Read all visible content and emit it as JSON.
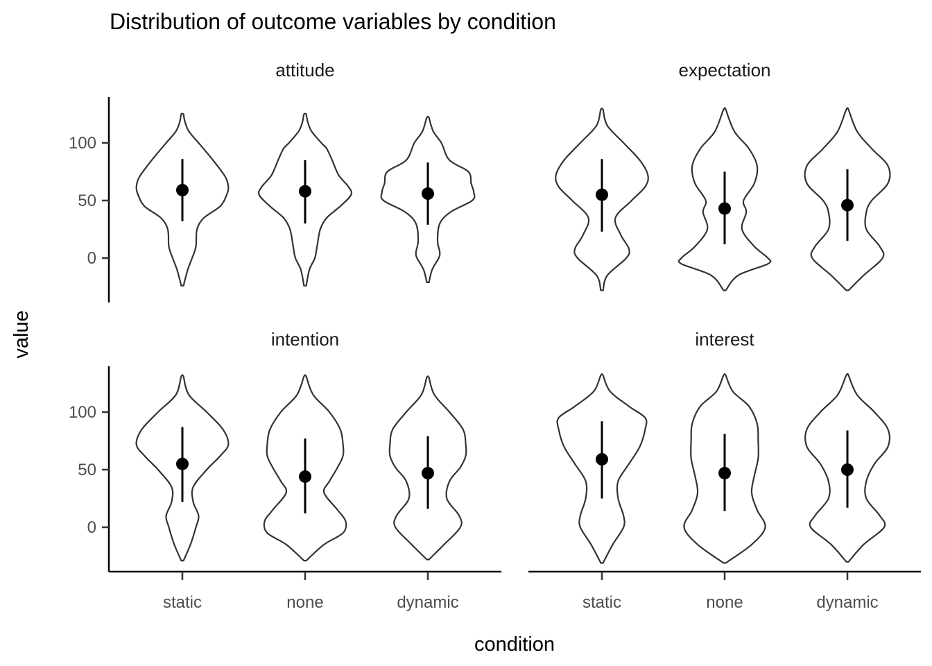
{
  "chart_data": {
    "type": "violin",
    "title": "Distribution of outcome variables by condition",
    "xlabel": "condition",
    "ylabel": "value",
    "categories": [
      "static",
      "none",
      "dynamic"
    ],
    "yticks": [
      0,
      50,
      100
    ],
    "ylim": [
      -38,
      138
    ],
    "facets": [
      {
        "name": "attitude",
        "groups": [
          {
            "condition": "static",
            "mean": 59,
            "low": 32,
            "high": 86,
            "min": -24,
            "max": 125,
            "profile": [
              [
                -24,
                0.02
              ],
              [
                -10,
                0.1
              ],
              [
                0,
                0.18
              ],
              [
                10,
                0.25
              ],
              [
                25,
                0.27
              ],
              [
                35,
                0.4
              ],
              [
                45,
                0.7
              ],
              [
                55,
                0.82
              ],
              [
                62,
                0.85
              ],
              [
                70,
                0.8
              ],
              [
                80,
                0.65
              ],
              [
                90,
                0.48
              ],
              [
                100,
                0.3
              ],
              [
                110,
                0.12
              ],
              [
                118,
                0.05
              ],
              [
                125,
                0.02
              ]
            ]
          },
          {
            "condition": "none",
            "mean": 58,
            "low": 30,
            "high": 85,
            "min": -24,
            "max": 125,
            "profile": [
              [
                -24,
                0.02
              ],
              [
                -10,
                0.08
              ],
              [
                0,
                0.18
              ],
              [
                10,
                0.22
              ],
              [
                25,
                0.28
              ],
              [
                35,
                0.4
              ],
              [
                45,
                0.65
              ],
              [
                55,
                0.85
              ],
              [
                62,
                0.8
              ],
              [
                72,
                0.62
              ],
              [
                85,
                0.5
              ],
              [
                95,
                0.4
              ],
              [
                100,
                0.3
              ],
              [
                110,
                0.12
              ],
              [
                118,
                0.05
              ],
              [
                125,
                0.02
              ]
            ]
          },
          {
            "condition": "dynamic",
            "mean": 56,
            "low": 29,
            "high": 83,
            "min": -21,
            "max": 122,
            "profile": [
              [
                -21,
                0.02
              ],
              [
                -10,
                0.08
              ],
              [
                0,
                0.2
              ],
              [
                5,
                0.22
              ],
              [
                15,
                0.18
              ],
              [
                30,
                0.22
              ],
              [
                40,
                0.42
              ],
              [
                50,
                0.82
              ],
              [
                57,
                0.85
              ],
              [
                65,
                0.8
              ],
              [
                75,
                0.75
              ],
              [
                85,
                0.4
              ],
              [
                100,
                0.25
              ],
              [
                110,
                0.1
              ],
              [
                122,
                0.02
              ]
            ]
          }
        ]
      },
      {
        "name": "expectation",
        "groups": [
          {
            "condition": "static",
            "mean": 55,
            "low": 23,
            "high": 86,
            "min": -28,
            "max": 129,
            "profile": [
              [
                -28,
                0.02
              ],
              [
                -15,
                0.1
              ],
              [
                0,
                0.45
              ],
              [
                8,
                0.5
              ],
              [
                20,
                0.35
              ],
              [
                35,
                0.25
              ],
              [
                50,
                0.55
              ],
              [
                62,
                0.8
              ],
              [
                72,
                0.85
              ],
              [
                85,
                0.7
              ],
              [
                100,
                0.4
              ],
              [
                115,
                0.1
              ],
              [
                129,
                0.02
              ]
            ]
          },
          {
            "condition": "none",
            "mean": 43,
            "low": 12,
            "high": 75,
            "min": -28,
            "max": 129,
            "profile": [
              [
                -28,
                0.02
              ],
              [
                -15,
                0.25
              ],
              [
                -5,
                0.8
              ],
              [
                0,
                0.8
              ],
              [
                10,
                0.55
              ],
              [
                25,
                0.32
              ],
              [
                40,
                0.4
              ],
              [
                50,
                0.35
              ],
              [
                65,
                0.55
              ],
              [
                80,
                0.6
              ],
              [
                95,
                0.45
              ],
              [
                110,
                0.18
              ],
              [
                129,
                0.02
              ]
            ]
          },
          {
            "condition": "dynamic",
            "mean": 46,
            "low": 15,
            "high": 77,
            "min": -28,
            "max": 129,
            "profile": [
              [
                -28,
                0.02
              ],
              [
                -15,
                0.3
              ],
              [
                0,
                0.65
              ],
              [
                10,
                0.6
              ],
              [
                25,
                0.35
              ],
              [
                40,
                0.35
              ],
              [
                50,
                0.45
              ],
              [
                65,
                0.75
              ],
              [
                80,
                0.75
              ],
              [
                95,
                0.45
              ],
              [
                110,
                0.18
              ],
              [
                129,
                0.02
              ]
            ]
          }
        ]
      },
      {
        "name": "intention",
        "groups": [
          {
            "condition": "static",
            "mean": 55,
            "low": 22,
            "high": 87,
            "min": -29,
            "max": 131,
            "profile": [
              [
                -29,
                0.02
              ],
              [
                -15,
                0.15
              ],
              [
                0,
                0.25
              ],
              [
                10,
                0.3
              ],
              [
                22,
                0.2
              ],
              [
                35,
                0.2
              ],
              [
                50,
                0.45
              ],
              [
                62,
                0.7
              ],
              [
                72,
                0.85
              ],
              [
                85,
                0.75
              ],
              [
                100,
                0.45
              ],
              [
                115,
                0.12
              ],
              [
                131,
                0.02
              ]
            ]
          },
          {
            "condition": "none",
            "mean": 44,
            "low": 12,
            "high": 77,
            "min": -29,
            "max": 131,
            "profile": [
              [
                -29,
                0.02
              ],
              [
                -15,
                0.35
              ],
              [
                -5,
                0.7
              ],
              [
                5,
                0.75
              ],
              [
                15,
                0.6
              ],
              [
                30,
                0.35
              ],
              [
                40,
                0.45
              ],
              [
                52,
                0.6
              ],
              [
                62,
                0.7
              ],
              [
                72,
                0.7
              ],
              [
                85,
                0.65
              ],
              [
                100,
                0.45
              ],
              [
                115,
                0.15
              ],
              [
                131,
                0.02
              ]
            ]
          },
          {
            "condition": "dynamic",
            "mean": 47,
            "low": 16,
            "high": 79,
            "min": -28,
            "max": 130,
            "profile": [
              [
                -28,
                0.02
              ],
              [
                -15,
                0.3
              ],
              [
                0,
                0.6
              ],
              [
                10,
                0.58
              ],
              [
                25,
                0.35
              ],
              [
                40,
                0.4
              ],
              [
                52,
                0.6
              ],
              [
                62,
                0.7
              ],
              [
                72,
                0.7
              ],
              [
                85,
                0.65
              ],
              [
                100,
                0.4
              ],
              [
                115,
                0.12
              ],
              [
                130,
                0.02
              ]
            ]
          }
        ]
      },
      {
        "name": "interest",
        "groups": [
          {
            "condition": "static",
            "mean": 59,
            "low": 25,
            "high": 92,
            "min": -31,
            "max": 132,
            "profile": [
              [
                -31,
                0.02
              ],
              [
                -15,
                0.2
              ],
              [
                0,
                0.4
              ],
              [
                10,
                0.4
              ],
              [
                25,
                0.3
              ],
              [
                40,
                0.3
              ],
              [
                55,
                0.5
              ],
              [
                70,
                0.7
              ],
              [
                85,
                0.8
              ],
              [
                95,
                0.8
              ],
              [
                105,
                0.5
              ],
              [
                118,
                0.15
              ],
              [
                132,
                0.02
              ]
            ]
          },
          {
            "condition": "none",
            "mean": 47,
            "low": 14,
            "high": 81,
            "min": -31,
            "max": 132,
            "profile": [
              [
                -31,
                0.02
              ],
              [
                -15,
                0.5
              ],
              [
                0,
                0.75
              ],
              [
                15,
                0.6
              ],
              [
                30,
                0.5
              ],
              [
                45,
                0.55
              ],
              [
                60,
                0.62
              ],
              [
                75,
                0.62
              ],
              [
                90,
                0.6
              ],
              [
                105,
                0.45
              ],
              [
                118,
                0.15
              ],
              [
                132,
                0.02
              ]
            ]
          },
          {
            "condition": "dynamic",
            "mean": 50,
            "low": 17,
            "high": 84,
            "min": -30,
            "max": 132,
            "profile": [
              [
                -30,
                0.02
              ],
              [
                -15,
                0.3
              ],
              [
                0,
                0.68
              ],
              [
                10,
                0.6
              ],
              [
                25,
                0.35
              ],
              [
                40,
                0.35
              ],
              [
                55,
                0.5
              ],
              [
                70,
                0.75
              ],
              [
                85,
                0.75
              ],
              [
                100,
                0.5
              ],
              [
                115,
                0.18
              ],
              [
                132,
                0.02
              ]
            ]
          }
        ]
      }
    ]
  }
}
